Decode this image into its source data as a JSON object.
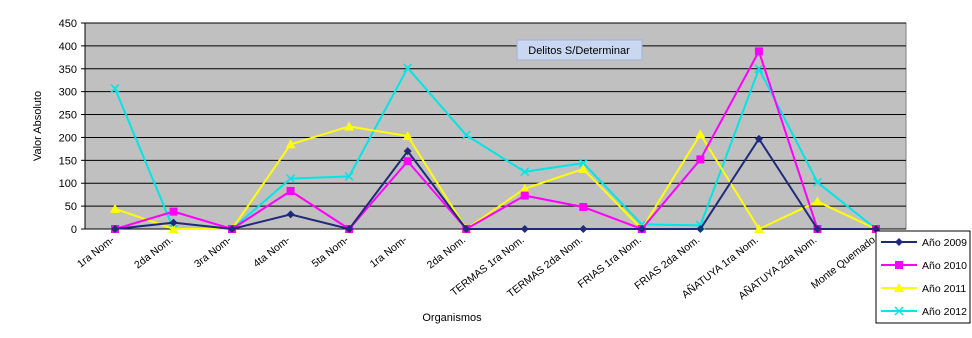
{
  "chart_data": {
    "type": "line",
    "title": "Delitos S/Determinar",
    "xlabel": "Organismos",
    "ylabel": "Valor Absoluto",
    "ylim": [
      0,
      450
    ],
    "ytick_step": 50,
    "grid": true,
    "legend_position": "right",
    "plot_background": "#c0c0c0",
    "categories": [
      "1ra  Nom-",
      "2da Nom.",
      "3ra  Nom-",
      "4ta  Nom-",
      "5ta  Nom-",
      "1ra  Nom-",
      "2da Nom.",
      "TERMAS  1ra Nom.",
      "TERMAS  2da Nom.",
      "FRIAS 1ra Nom.",
      "FRIAS 2da Nom.",
      "AÑATUYA  1ra Nom.",
      "AÑATUYA 2da Nom.",
      "Monte Quemado"
    ],
    "series": [
      {
        "name": "Año 2009",
        "color": "#1f2a7a",
        "marker": "diamond",
        "values": [
          0,
          14,
          0,
          32,
          0,
          170,
          0,
          0,
          0,
          0,
          0,
          197,
          0,
          0
        ]
      },
      {
        "name": "Año 2010",
        "color": "#ff00ff",
        "marker": "square",
        "values": [
          0,
          38,
          0,
          83,
          0,
          148,
          0,
          73,
          48,
          0,
          152,
          388,
          0,
          0
        ]
      },
      {
        "name": "Año 2011",
        "color": "#ffff00",
        "marker": "triangle",
        "values": [
          44,
          0,
          0,
          185,
          224,
          203,
          0,
          88,
          131,
          0,
          207,
          0,
          60,
          0
        ]
      },
      {
        "name": "Año 2012",
        "color": "#00e5e5",
        "marker": "x",
        "values": [
          307,
          0,
          0,
          110,
          115,
          352,
          205,
          125,
          144,
          10,
          8,
          350,
          102,
          0
        ]
      }
    ]
  }
}
